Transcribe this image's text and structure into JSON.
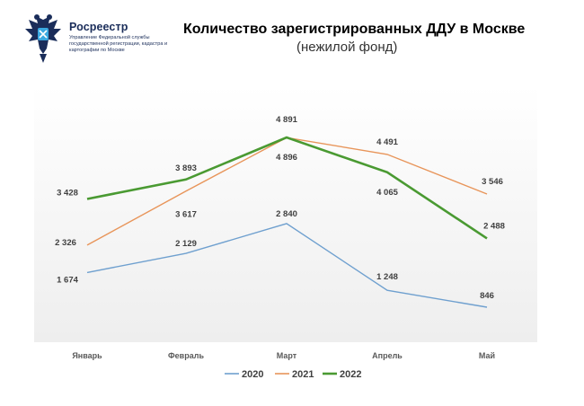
{
  "logo": {
    "name": "Росреестр",
    "subtitle": "Управление Федеральной службы государственной регистрации, кадастра и картографии по Москве"
  },
  "chart_data": {
    "type": "line",
    "title": "Количество зарегистрированных ДДУ в Москве",
    "subtitle": "(нежилой фонд)",
    "categories": [
      "Январь",
      "Февраль",
      "Март",
      "Апрель",
      "Май"
    ],
    "series": [
      {
        "name": "2020",
        "color": "#6fa0cf",
        "values": [
          1674,
          2129,
          2840,
          1248,
          846
        ],
        "labels": [
          "1 674",
          "2 129",
          "2 840",
          "1 248",
          "846"
        ]
      },
      {
        "name": "2021",
        "color": "#e8955a",
        "values": [
          2326,
          3617,
          4891,
          4491,
          3546
        ],
        "labels": [
          "2 326",
          "3 617",
          "4 891",
          "4 491",
          "3 546"
        ]
      },
      {
        "name": "2022",
        "color": "#4a9a32",
        "values": [
          3428,
          3893,
          4896,
          4065,
          2488
        ],
        "labels": [
          "3 428",
          "3 893",
          "4 896",
          "4 065",
          "2 488"
        ]
      }
    ],
    "legend": "bottom",
    "grid": false
  }
}
